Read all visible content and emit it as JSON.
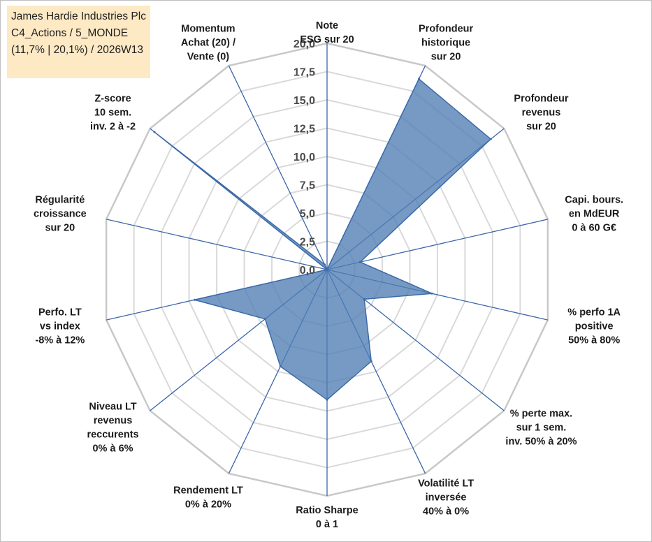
{
  "title_box": {
    "line1": "James Hardie Industries Plc",
    "line2": "C4_Actions / 5_MONDE",
    "line3": "(11,7% | 20,1%) / 2026W13"
  },
  "chart_data": {
    "type": "radar",
    "title": "",
    "rmin": 0,
    "rmax": 20,
    "ticks": [
      "0,0",
      "2,5",
      "5,0",
      "7,5",
      "10,0",
      "12,5",
      "15,0",
      "17,5",
      "20,0"
    ],
    "tick_values": [
      0,
      2.5,
      5,
      7.5,
      10,
      12.5,
      15,
      17.5,
      20
    ],
    "grid": true,
    "axes": [
      "Note\nESG sur 20",
      "Profondeur\nhistorique\nsur 20",
      "Profondeur\nrevenus\nsur 20",
      "Capi. bours.\nen MdEUR\n0 à 60 G€",
      "% perfo 1A\npositive\n50% à 80%",
      "% perte max.\nsur 1 sem.\ninv. 50% à 20%",
      "Volatilité LT\ninversée\n40% à 0%",
      "Ratio Sharpe\n0 à 1",
      "Rendement LT\n0% à 20%",
      "Niveau LT\nrevenus\nreccurents\n0% à 6%",
      "Perfo. LT\nvs index\n-8% à 12%",
      "Régularité\ncroissance\nsur 20",
      "Z-score\n10 sem.\ninv. 2 à -2",
      "Momentum\nAchat (20) /\nVente (0)"
    ],
    "series": [
      {
        "values": [
          0,
          18.7,
          18.5,
          3.0,
          9.5,
          4.2,
          9.0,
          11.5,
          9.5,
          7.0,
          12.0,
          0,
          19.5,
          0.5
        ]
      }
    ],
    "colors": {
      "fill": "#4f7db4",
      "stroke": "#3b6aa8",
      "spoke": "#3a66a8",
      "grid_outer": "#c8c8c8",
      "grid_inner": "#d9d9d9"
    }
  }
}
